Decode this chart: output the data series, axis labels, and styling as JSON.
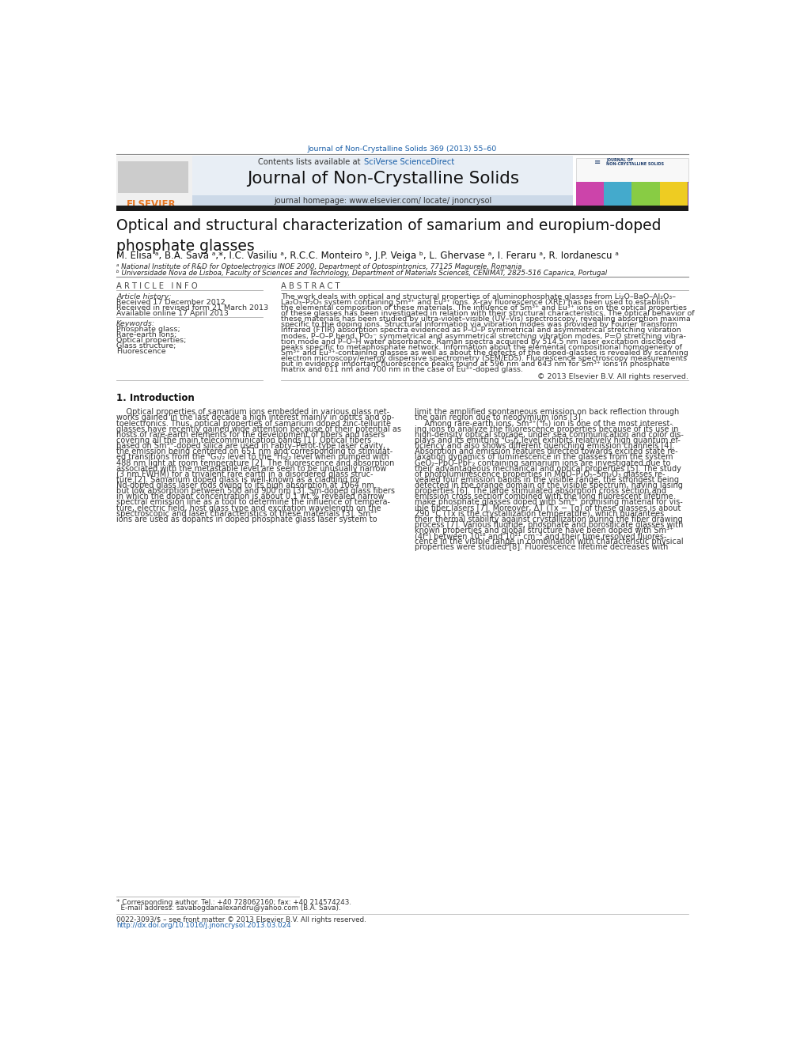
{
  "page_width": 9.92,
  "page_height": 13.23,
  "bg_color": "#ffffff",
  "header_citation": "Journal of Non-Crystalline Solids 369 (2013) 55–60",
  "header_citation_color": "#1a5fa8",
  "journal_name": "Journal of Non-Crystalline Solids",
  "contents_text": "Contents lists available at ",
  "sciverse_text": "SciVerse ScienceDirect",
  "sciverse_color": "#1a5fa8",
  "homepage_text": "journal homepage: www.elsevier.com/ locate/ jnoncrysol",
  "header_bg": "#e8eef5",
  "thick_bar_color": "#1a1a1a",
  "article_title": "Optical and structural characterization of samarium and europium-doped\nphosphate glasses",
  "authors": "M. Elisa ᵃ, B.A. Sava ᵃ,*, I.C. Vasiliu ᵃ, R.C.C. Monteiro ᵇ, J.P. Veiga ᵇ, L. Ghervase ᵃ, I. Feraru ᵃ, R. Iordanescu ᵃ",
  "affil_a": "ᵃ National Institute of R&D for Optoelectronics INOE 2000, Department of Optospintronics, 77125 Magurele, Romania",
  "affil_b": "ᵇ Universidade Nova de Lisboa, Faculty of Sciences and Technology, Department of Materials Sciences, CENIMAT, 2825-516 Caparica, Portugal",
  "article_info_title": "A R T I C L E   I N F O",
  "abstract_title": "A B S T R A C T",
  "article_history_title": "Article history:",
  "received": "Received 17 December 2012",
  "revised": "Received in revised form 21 March 2013",
  "available": "Available online 17 April 2013",
  "keywords_title": "Keywords:",
  "keywords": [
    "Phosphate glass;",
    "Rare-earth ions;",
    "Optical properties;",
    "Glass structure;",
    "Fluorescence"
  ],
  "copyright": "© 2013 Elsevier B.V. All rights reserved.",
  "intro_title": "1. Introduction",
  "footnote_line1": "* Corresponding author. Tel.: +40 728062160; fax: +40 214574243.",
  "footnote_line2": "  E-mail address: savabogdanalexandru@yahoo.com (B.A. Sava).",
  "issn_text": "0022-3093/$ – see front matter © 2013 Elsevier B.V. All rights reserved.",
  "doi_text": "http://dx.doi.org/10.1016/j.jnoncrysol.2013.03.024",
  "doi_color": "#1a5fa8",
  "abstract_lines": [
    "The work deals with optical and structural properties of aluminophosphate glasses from Li₂O–BaO–Al₂O₃–",
    "La₂O₃–P₂O₅ system containing Sm³⁺ and Eu³⁺ ions. X-ray fluorescence (XRF) has been used to establish",
    "the elemental composition of these materials. The influence of Sm³⁺ and Eu³⁺ ions on the optical properties",
    "of these glasses has been investigated in relation with their structural characteristics. The optical behavior of",
    "these materials has been studied by ultra-violet–visible (UV–Vis) spectroscopy, revealing absorption maxima",
    "specific to the doping ions. Structural information via vibration modes was provided by Fourier Transform",
    "Infrared (FTIR) absorption spectra evidenced as P–O–P symmetrical and asymmetrical stretching vibration",
    "modes, P–O–P bend, PO₂⁻ symmetrical and asymmetrical stretching vibration modes, P=O stretching vibra-",
    "tion mode and P–O–H water absorbance. Raman spectra acquired by 514.5 nm laser excitation disclosed",
    "peaks specific to metaphosphate network. Information about the elemental compositional homogeneity of",
    "Sm³⁺ and Eu³⁺-containing glasses as well as about the defects of the doped-glasses is revealed by scanning",
    "electron microscopy/energy dispersive spectrometry (SEM/EDS). Fluorescence spectroscopy measurements",
    "put in evidence important fluorescence peaks found at 596 nm and 643 nm for Sm³⁺ ions in phosphate",
    "matrix and 611 nm and 700 nm in the case of Eu³⁺-doped glass."
  ],
  "col1_lines": [
    "    Optical properties of samarium ions embedded in various glass net-",
    "works gained in the last decade a high interest mainly in optics and op-",
    "toelectronics. Thus, optical properties of samarium doped zinc-tellurite",
    "glasses have recently gained wide attention because of their potential as",
    "hosts of rare-earth elements for the development of fibers and lasers",
    "covering all the main telecommunication bands [1]. Optical fibers",
    "based on Sm³⁺-doped silica are used in Fabry–Perot-type laser cavity,",
    "the emission being centered on 651 nm and corresponding to stimulat-",
    "ed transitions from the ⁴G₅/₂ level to the ⁶H₉/₂ level when pumped with",
    "488 nm light at room temperature [2]. The fluorescence and absorption",
    "associated with the metastable level are seen to be unusually narrow",
    "(3 nm FWHM) for a trivalent rare earth in a disordered glass struc-",
    "ture [2]. Samarium doped glass is well-known as a cladding for",
    "Nd-doped glass laser rods owing to its high absorption at 1064 nm",
    "but low absorption between 500 and 900 nm [3]. Sm-doped glass fibers",
    "in which the dopant concentration is about 0.1 wt.% revealed narrow",
    "spectral emission line as a tool to determine the influence of tempera-",
    "ture, electric field, host glass type and excitation wavelength on the",
    "spectroscopic and laser characteristics of these materials [3]. Sm³⁺",
    "ions are used as dopants in doped phosphate glass laser system to"
  ],
  "col2_lines": [
    "limit the amplified spontaneous emission on back reflection through",
    "the gain region due to neodymium ions [3].",
    "    Among rare-earth ions, Sm³⁺(⁴f₅) ion is one of the most interest-",
    "ing ions to analyze the fluorescence properties because of its use in",
    "high-density optical storage, under sea communication and color dis-",
    "plays and its emitting ⁴G₅/₂ level exhibits relatively high quantum ef-",
    "ficiency and also shows different quenching emission channels [4].",
    "Absorption and emission features directed towards excited state re-",
    "laxation dynamics of luminescence in the glasses from the system",
    "GeO₂–PbO–PbF₂ containing samarium ions are investigated due to",
    "their advantageous mechanical and optical properties [5]. The study",
    "of photoluminescence properties in MgO–P₂O₅–Sm₂O₃ glasses re-",
    "vealed four emission bands in the visible range, the strongest being",
    "detected in the orange domain of the visible spectrum, having lasing",
    "properties [6]. The large stimulated absorption cross section and",
    "emission cross section combined with the long fluorescent lifetime",
    "make phosphate glasses doped with Sm³⁺ promising material for vis-",
    "ible fiber lasers [7]. Moreover, ΔT (Tx − Tg) of these glasses is about",
    "290 °C (Tx is the crystallization temperature), which guarantees",
    "their thermal stability against crystallization during the fiber drawing",
    "process [7]. Various fluoride, phosphate and borosilicate glasses with",
    "known properties and global structure have been doped with Sm³⁺",
    "(4f⁵) between 10¹⁸ and 10²¹ cm⁻³ and their time resolved fluores-",
    "cence in the visible range in combination with characteristic physical",
    "properties were studied [8]. Fluorescence lifetime decreases with"
  ]
}
